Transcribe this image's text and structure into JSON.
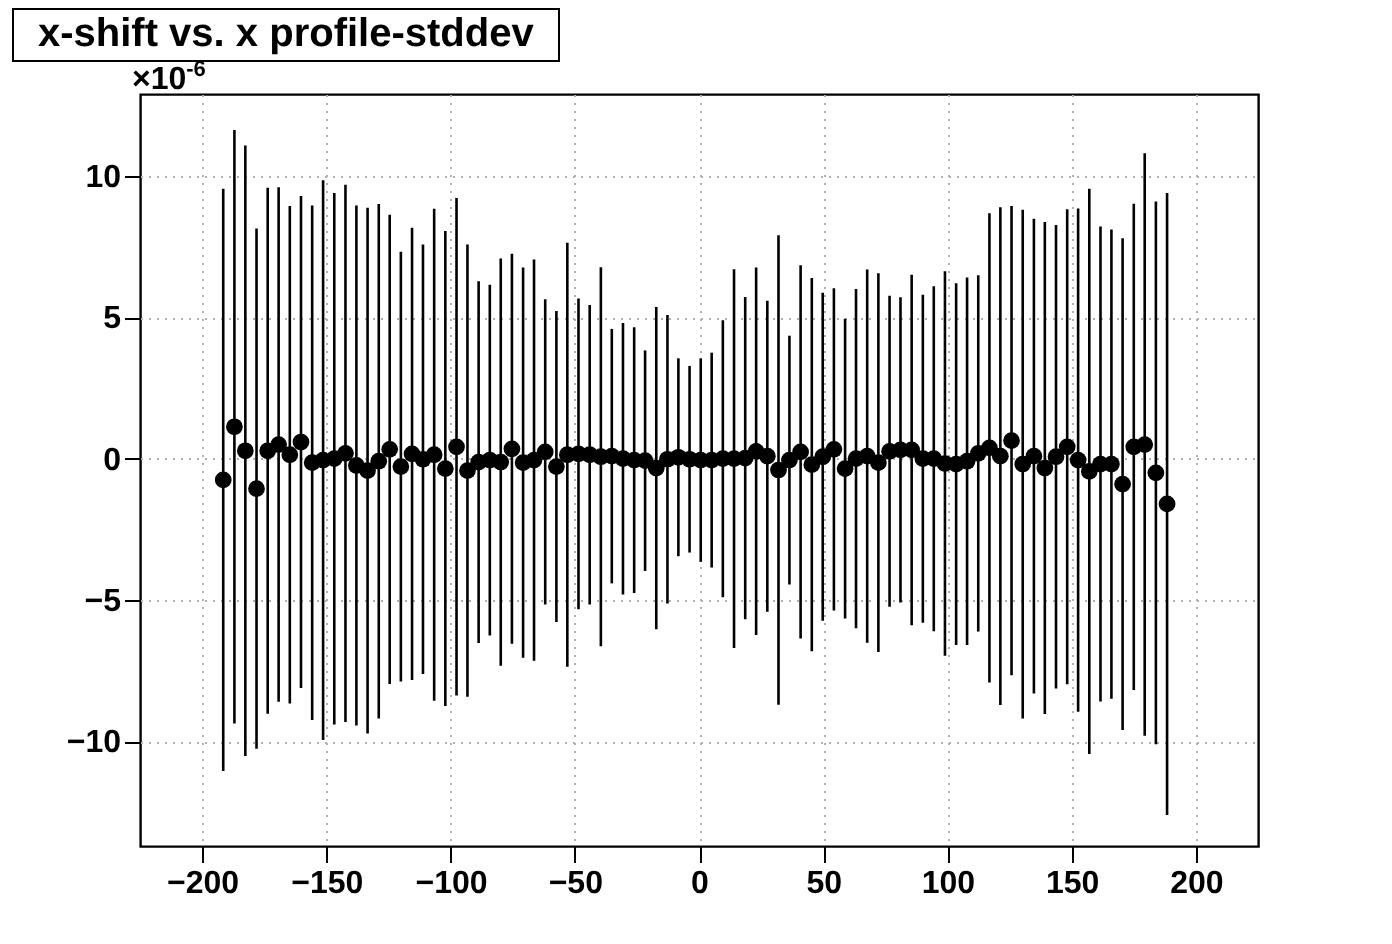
{
  "chart_data": {
    "type": "scatter",
    "title": "x-shift vs. x profile-stddev",
    "annotations": [
      "×10$^{-6}$"
    ],
    "x": [
      -191.5,
      -187.0,
      -182.6,
      -178.1,
      -173.6,
      -169.2,
      -164.7,
      -160.2,
      -155.7,
      -151.3,
      -146.8,
      -142.3,
      -137.9,
      -133.4,
      -128.9,
      -124.5,
      -120.0,
      -115.5,
      -111.1,
      -106.6,
      -102.1,
      -97.6,
      -93.2,
      -88.7,
      -84.2,
      -79.8,
      -75.3,
      -70.8,
      -66.4,
      -61.9,
      -57.4,
      -53.0,
      -48.5,
      -44.0,
      -39.5,
      -35.1,
      -30.6,
      -26.1,
      -21.7,
      -17.2,
      -12.7,
      -8.3,
      -3.8,
      0.7,
      5.1,
      9.6,
      14.1,
      18.6,
      23.0,
      27.5,
      32.0,
      36.4,
      40.9,
      45.4,
      49.8,
      54.3,
      58.8,
      63.2,
      67.7,
      72.2,
      76.7,
      81.1,
      85.6,
      90.1,
      94.5,
      99.0,
      103.5,
      107.9,
      112.4,
      116.9,
      121.3,
      125.8,
      130.3,
      134.8,
      139.2,
      143.7,
      148.2,
      152.6,
      157.1,
      161.6,
      166.0,
      170.5,
      175.0,
      179.4,
      183.9,
      188.4
    ],
    "values": [
      -0.75,
      1.13,
      0.28,
      -1.06,
      0.28,
      0.5,
      0.14,
      0.59,
      -0.14,
      -0.05,
      0,
      0.19,
      -0.24,
      -0.42,
      -0.09,
      0.33,
      -0.28,
      0.17,
      -0.02,
      0.14,
      -0.35,
      0.42,
      -0.42,
      -0.12,
      -0.05,
      -0.12,
      0.35,
      -0.14,
      -0.05,
      0.24,
      -0.28,
      0.14,
      0.17,
      0.14,
      0.07,
      0.09,
      0,
      -0.05,
      -0.07,
      -0.33,
      -0.02,
      0.05,
      -0.02,
      -0.05,
      -0.05,
      0,
      0,
      0.02,
      0.26,
      0.09,
      -0.4,
      -0.05,
      0.24,
      -0.21,
      0.07,
      0.33,
      -0.35,
      0,
      0.09,
      -0.14,
      0.26,
      0.31,
      0.31,
      0,
      0,
      -0.17,
      -0.19,
      -0.09,
      0.19,
      0.38,
      0.09,
      0.64,
      -0.19,
      0.09,
      -0.33,
      0.07,
      0.42,
      -0.05,
      -0.45,
      -0.19,
      -0.19,
      -0.9,
      0.42,
      0.5,
      -0.5,
      -1.6
    ],
    "errors": [
      10.3,
      10.5,
      10.8,
      9.2,
      9.3,
      9.1,
      8.8,
      8.7,
      9.1,
      9.9,
      9.4,
      9.5,
      9.2,
      9.3,
      9.1,
      8.3,
      7.6,
      8.0,
      7.6,
      8.7,
      8.4,
      8.8,
      8.0,
      6.4,
      6.2,
      7.2,
      6.9,
      6.9,
      7.1,
      5.4,
      5.5,
      7.5,
      5.5,
      5.3,
      6.7,
      4.5,
      4.8,
      4.7,
      3.9,
      5.7,
      5.1,
      3.5,
      3.3,
      3.6,
      3.8,
      4.9,
      6.7,
      5.7,
      6.5,
      5.5,
      8.3,
      4.4,
      6.6,
      6.6,
      5.8,
      5.7,
      5.3,
      6.0,
      6.6,
      6.7,
      5.5,
      5.4,
      6.2,
      5.8,
      6.1,
      6.8,
      6.4,
      6.5,
      6.3,
      8.3,
      8.8,
      8.3,
      9.0,
      8.4,
      8.7,
      8.2,
      8.4,
      8.9,
      10.0,
      8.4,
      8.3,
      8.7,
      8.6,
      10.3,
      9.6,
      11.0
    ],
    "color": "#000000",
    "marker": "circle",
    "grid": true,
    "xlim": [
      -225,
      225
    ],
    "xticks": [
      -200,
      -150,
      -100,
      -50,
      0,
      50,
      100,
      150,
      200
    ],
    "ylim": [
      -13.7,
      12.9
    ],
    "yticks": [
      -10,
      -5,
      0,
      5,
      10
    ]
  }
}
